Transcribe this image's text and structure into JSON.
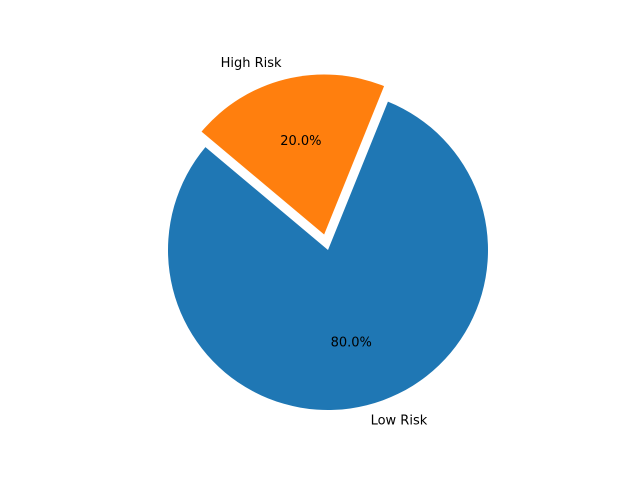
{
  "chart_data": {
    "type": "pie",
    "categories": [
      "Low Risk",
      "High Risk"
    ],
    "values": [
      80.0,
      20.0
    ],
    "percent_labels": [
      "80.0%",
      "20.0%"
    ],
    "colors": [
      "#1f77b4",
      "#ff7f0e"
    ],
    "exploded": [
      false,
      true
    ],
    "title": "",
    "legend": "none",
    "grid": false
  }
}
